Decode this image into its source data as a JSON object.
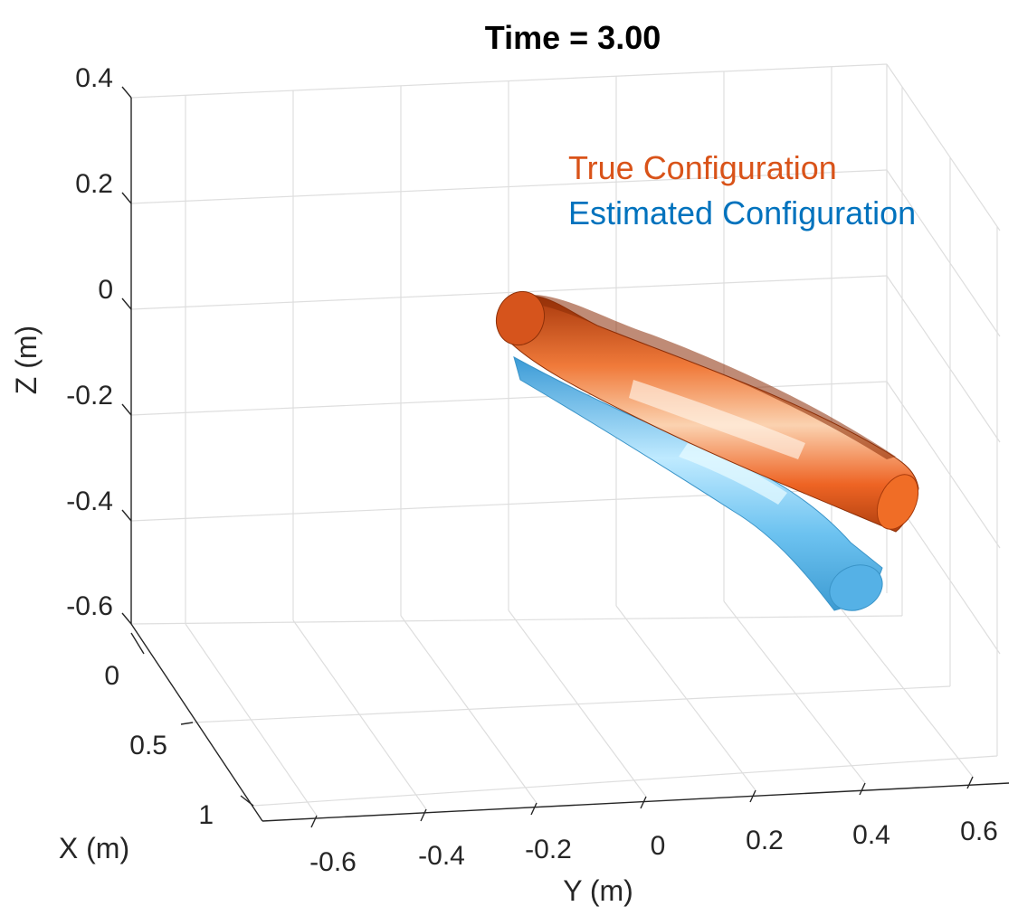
{
  "chart_data": {
    "type": "3d-surface",
    "title": "Time = 3.00",
    "xlabel": "X (m)",
    "ylabel": "Y (m)",
    "zlabel": "Z (m)",
    "xlim": [
      0,
      1
    ],
    "ylim": [
      -0.7,
      0.7
    ],
    "zlim": [
      -0.6,
      0.4
    ],
    "x_ticks": [
      "0",
      "0.5",
      "1"
    ],
    "y_ticks": [
      "-0.6",
      "-0.4",
      "-0.2",
      "0",
      "0.2",
      "0.4",
      "0.6"
    ],
    "z_ticks": [
      "0.4",
      "0.2",
      "0",
      "-0.2",
      "-0.4",
      "-0.6"
    ],
    "grid": true,
    "legend_position": "top-right",
    "series": [
      {
        "name": "True Configuration",
        "color": "#d95319"
      },
      {
        "name": "Estimated Configuration",
        "color": "#0072bd"
      }
    ]
  },
  "colors": {
    "true_body": "#ec6a2a",
    "estimated_body": "#5cb8ec"
  }
}
